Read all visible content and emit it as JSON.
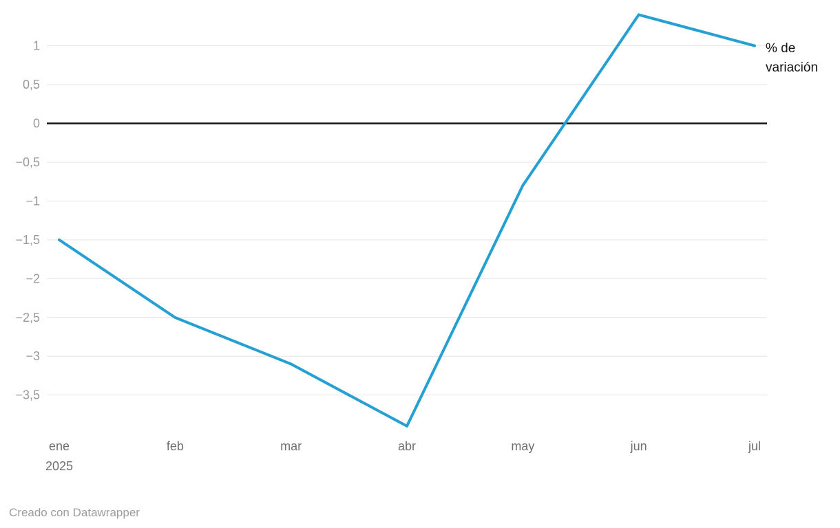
{
  "chart": {
    "series_label_lines": {
      "line1": "% de",
      "line2": "variación"
    },
    "footer_text": "Creado con Datawrapper",
    "colors": {
      "line": "#25a0d2",
      "zero_line": "#151515",
      "grid": "#e3e3e3",
      "tick_label": "#9a9a9a",
      "month_label": "#6f6f6f",
      "series_label": "#141414",
      "footer_text": "#9c9c9c",
      "background": "#ffffff"
    }
  },
  "chart_data": {
    "type": "line",
    "title": "",
    "categories": [
      "ene 2025",
      "feb",
      "mar",
      "abr",
      "may",
      "jun",
      "jul"
    ],
    "x_tick_labels": [
      "ene",
      "feb",
      "mar",
      "abr",
      "may",
      "jun",
      "jul"
    ],
    "x_first_tick_sublabel": "2025",
    "series": [
      {
        "name": "% de variación",
        "values": [
          -1.5,
          -2.5,
          -3.1,
          -3.9,
          -0.8,
          1.4,
          1.0
        ]
      }
    ],
    "y_ticks": [
      {
        "v": 1,
        "label": "1"
      },
      {
        "v": 0.5,
        "label": "0,5"
      },
      {
        "v": 0,
        "label": "0"
      },
      {
        "v": -0.5,
        "label": "−0,5"
      },
      {
        "v": -1,
        "label": "−1"
      },
      {
        "v": -1.5,
        "label": "−1,5"
      },
      {
        "v": -2,
        "label": "−2"
      },
      {
        "v": -2.5,
        "label": "−2,5"
      },
      {
        "v": -3,
        "label": "−3"
      },
      {
        "v": -3.5,
        "label": "−3,5"
      }
    ],
    "ylim": [
      -4.1,
      1.5
    ],
    "grid": "horizontal-only",
    "zero_baseline": true,
    "legend_position": "end-of-line-right",
    "decimal_separator": ",",
    "footer": "Creado con Datawrapper"
  }
}
